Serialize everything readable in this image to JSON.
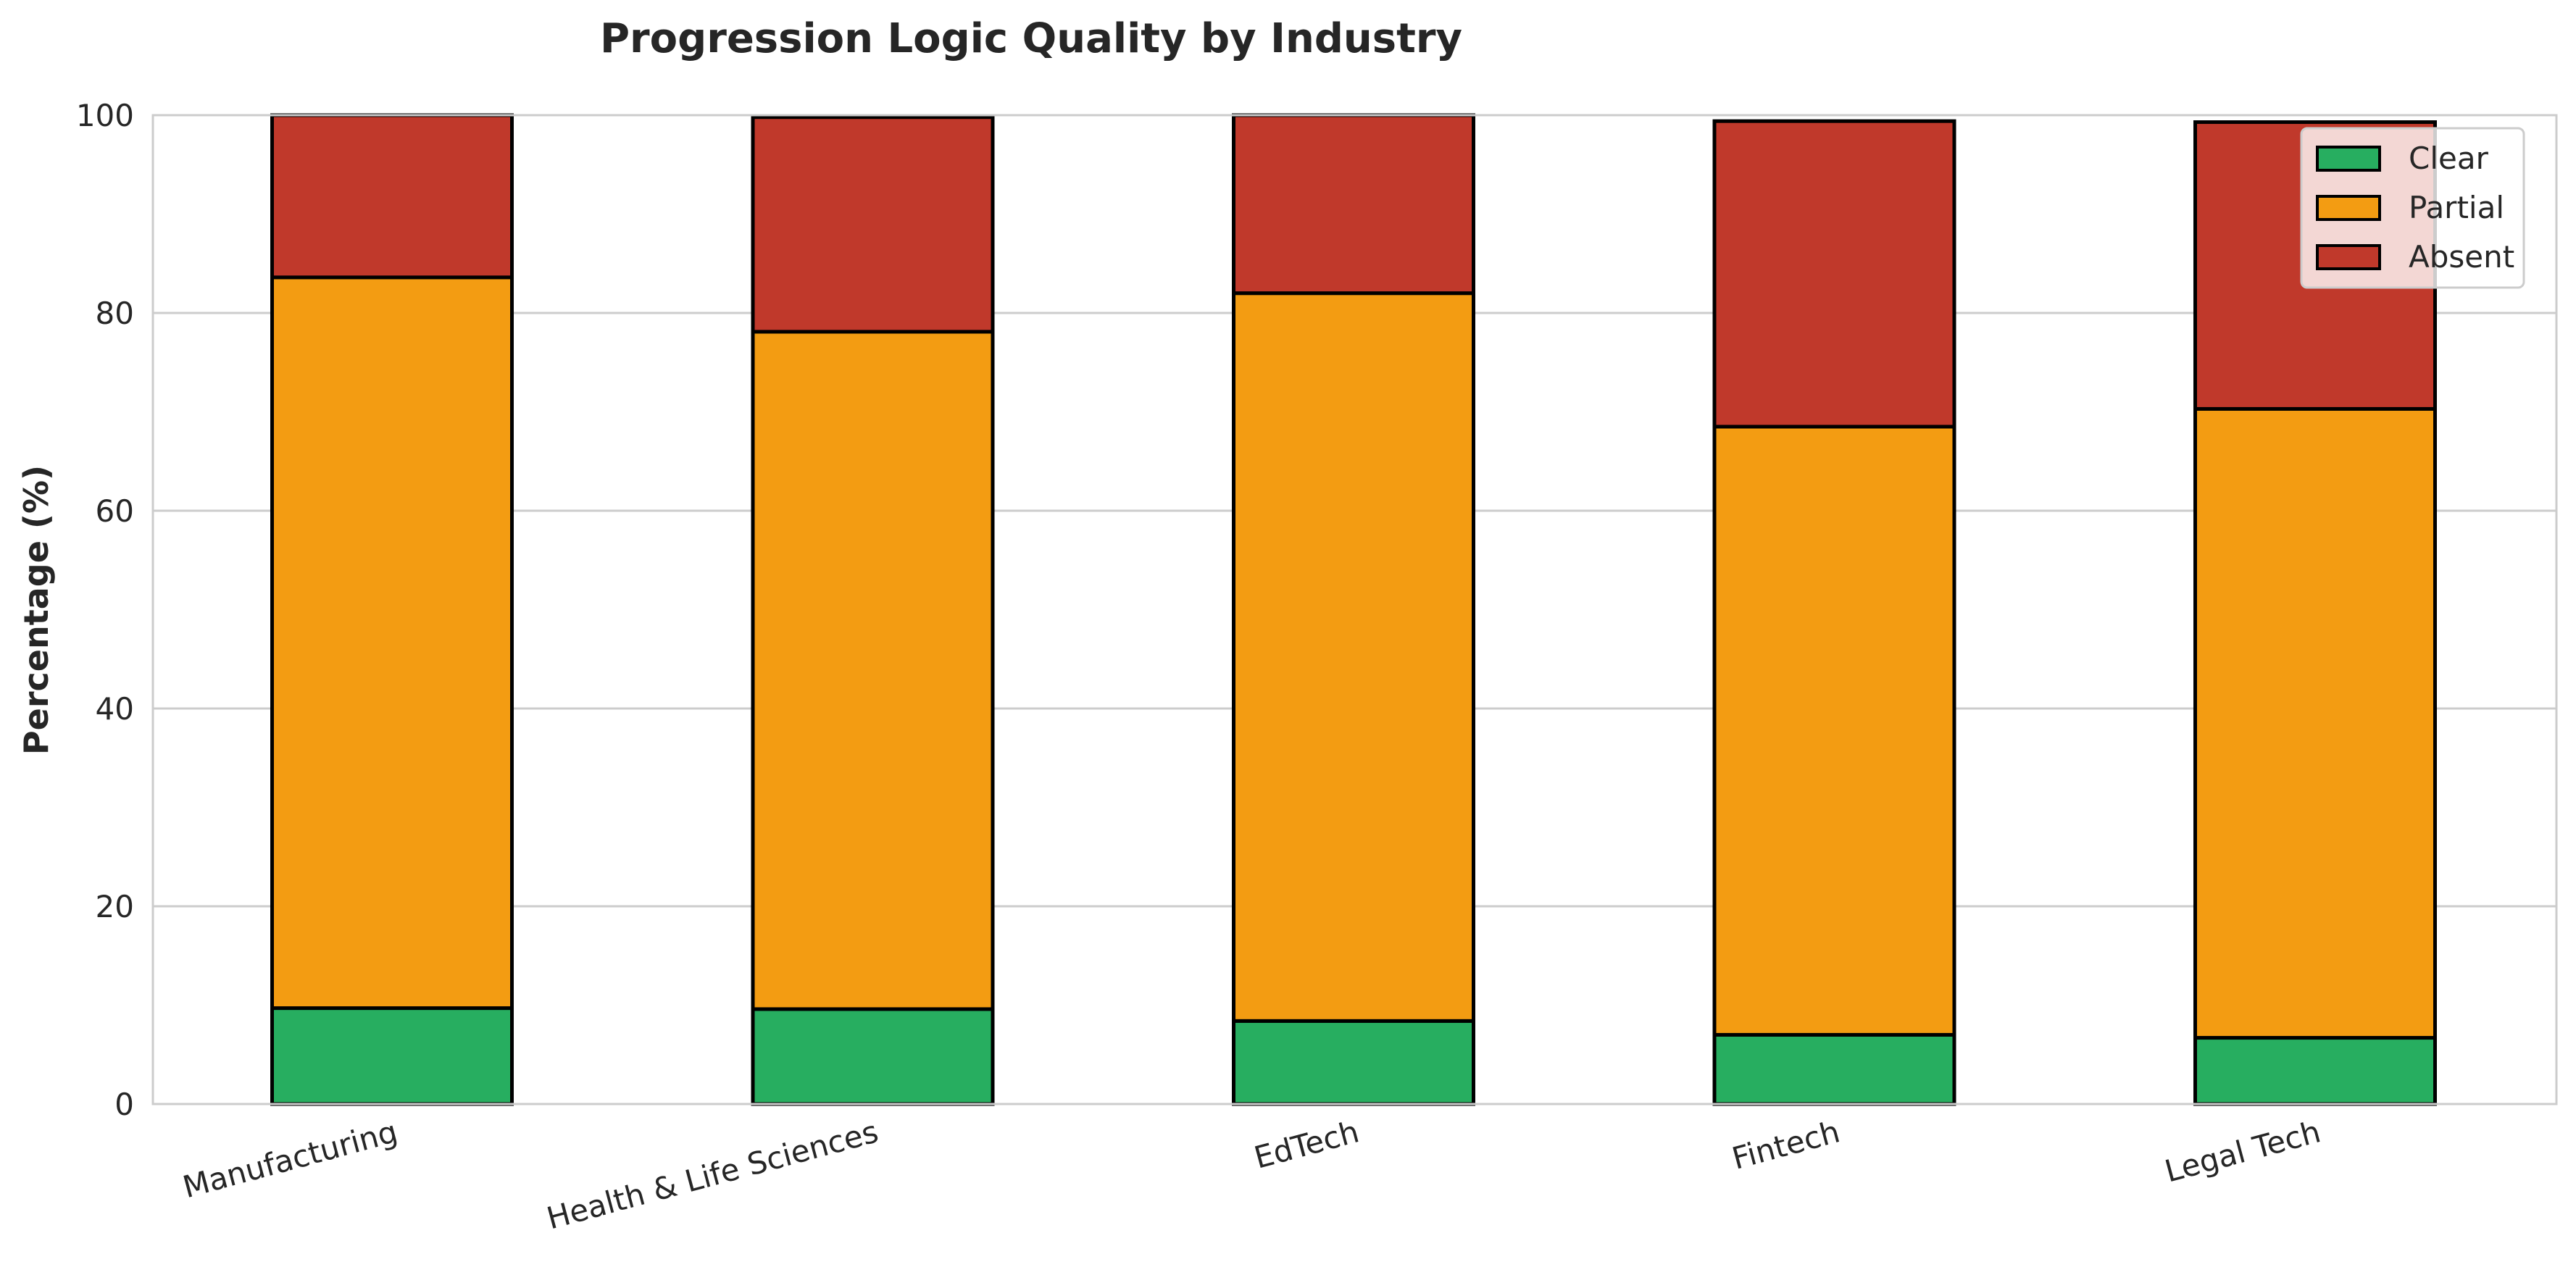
{
  "chart_data": {
    "type": "bar",
    "stacked": true,
    "title": "Progression Logic Quality by Industry",
    "xlabel": "",
    "ylabel": "Percentage (%)",
    "ylim": [
      0,
      100
    ],
    "yticks": [
      0,
      20,
      40,
      60,
      80,
      100
    ],
    "grid": "horizontal",
    "legend_position": "top-right",
    "categories": [
      "Manufacturing",
      "Health & Life Sciences",
      "EdTech",
      "Fintech",
      "Legal Tech"
    ],
    "series": [
      {
        "name": "Clear",
        "color": "#27ae60",
        "values": [
          9.7,
          9.6,
          8.4,
          7.0,
          6.7
        ]
      },
      {
        "name": "Partial",
        "color": "#f39c12",
        "values": [
          73.9,
          68.5,
          73.6,
          61.5,
          63.6
        ]
      },
      {
        "name": "Absent",
        "color": "#c0392b",
        "values": [
          16.4,
          21.7,
          18.0,
          30.9,
          29.0
        ]
      }
    ]
  }
}
